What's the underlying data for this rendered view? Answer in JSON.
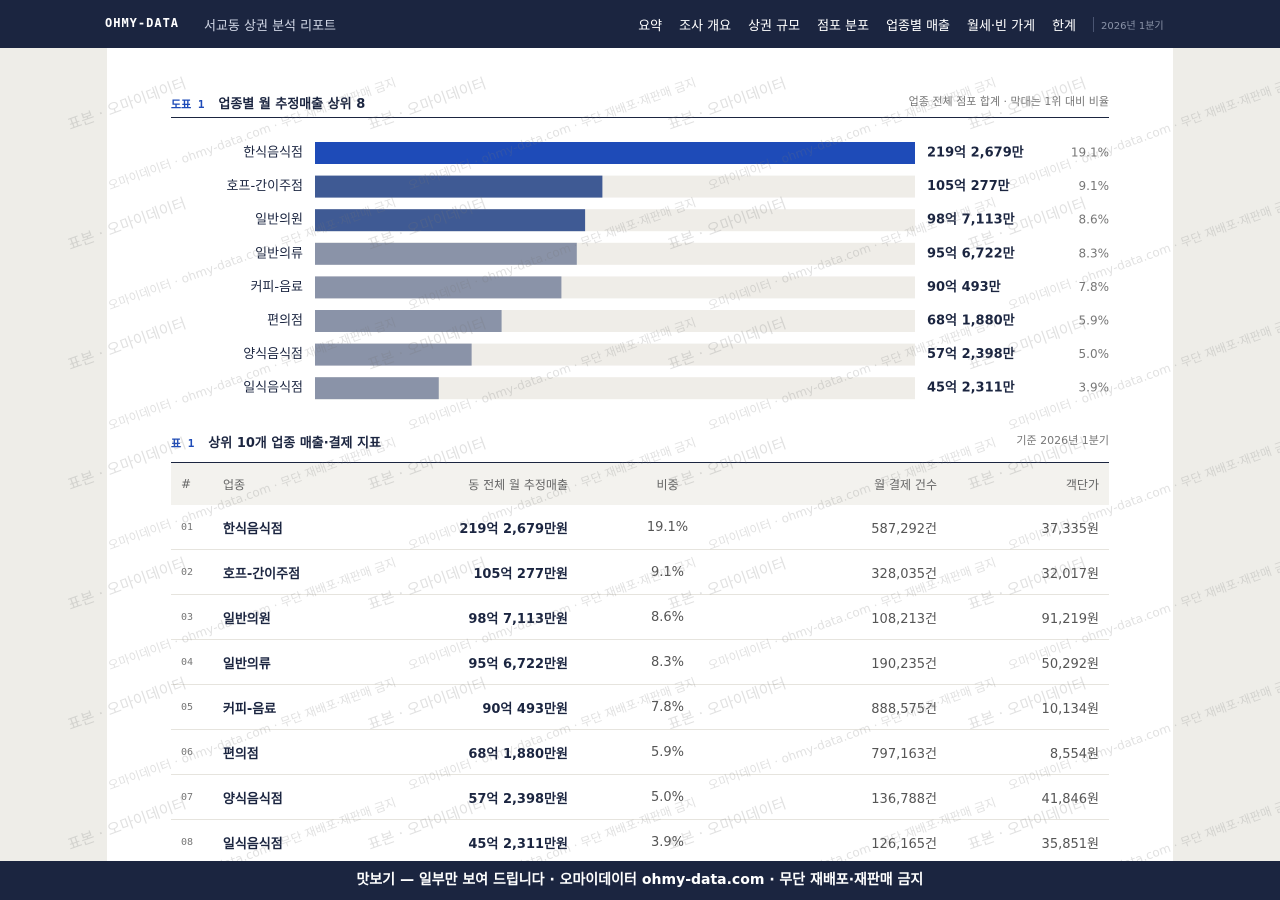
{
  "header": {
    "brand": "OHMY-DATA",
    "report_title": "서교동 상권 분석 리포트",
    "nav": [
      "요약",
      "조사 개요",
      "상권 규모",
      "점포 분포",
      "업종별 매출",
      "월세·빈 가게",
      "한계"
    ],
    "period": "2026년 1분기"
  },
  "chart_data": {
    "type": "bar",
    "orientation": "horizontal",
    "label": "도표 1",
    "title": "업종별 월 추정매출 상위 8",
    "subtitle": "업종 전체 점포 합계 · 막대는 1위 대비 비율",
    "categories": [
      "한식음식점",
      "호프-간이주점",
      "일반의원",
      "일반의류",
      "커피-음료",
      "편의점",
      "양식음식점",
      "일식음식점"
    ],
    "values": [
      2192679,
      1050277,
      987113,
      956722,
      900493,
      681880,
      572398,
      452311
    ],
    "value_labels": [
      "219억 2,679만",
      "105억 277만",
      "98억 7,113만",
      "95억 6,722만",
      "90억 493만",
      "68억 1,880만",
      "57억 2,398만",
      "45억 2,311만"
    ],
    "share_labels": [
      "19.1%",
      "9.1%",
      "8.6%",
      "8.3%",
      "7.8%",
      "5.9%",
      "5.0%",
      "3.9%"
    ],
    "colors": [
      "#1e4bb8",
      "#3f5a94",
      "#3f5a94",
      "#8a93a8",
      "#8a93a8",
      "#8a93a8",
      "#8a93a8",
      "#8a93a8"
    ],
    "track_color": "#efede8"
  },
  "table": {
    "label": "표 1",
    "title": "상위 10개 업종 매출·결제 지표",
    "note": "기준 2026년 1분기",
    "columns": [
      "#",
      "업종",
      "동 전체 월 추정매출",
      "비중",
      "월 결제 건수",
      "객단가"
    ],
    "rows": [
      [
        "01",
        "한식음식점",
        "219억 2,679만원",
        "19.1%",
        "587,292건",
        "37,335원"
      ],
      [
        "02",
        "호프-간이주점",
        "105억 277만원",
        "9.1%",
        "328,035건",
        "32,017원"
      ],
      [
        "03",
        "일반의원",
        "98억 7,113만원",
        "8.6%",
        "108,213건",
        "91,219원"
      ],
      [
        "04",
        "일반의류",
        "95억 6,722만원",
        "8.3%",
        "190,235건",
        "50,292원"
      ],
      [
        "05",
        "커피-음료",
        "90억 493만원",
        "7.8%",
        "888,575건",
        "10,134원"
      ],
      [
        "06",
        "편의점",
        "68억 1,880만원",
        "5.9%",
        "797,163건",
        "8,554원"
      ],
      [
        "07",
        "양식음식점",
        "57억 2,398만원",
        "5.0%",
        "136,788건",
        "41,846원"
      ],
      [
        "08",
        "일식음식점",
        "45억 2,311만원",
        "3.9%",
        "126,165건",
        "35,851원"
      ]
    ]
  },
  "watermark": [
    "표본 · 오마이데이터",
    "오마이데이터 · ohmy-data.com · 무단 재배포·재판매 금지"
  ],
  "footer": "맛보기 — 일부만 보여 드립니다 · 오마이데이터 ohmy-data.com · 무단 재배포·재판매 금지"
}
